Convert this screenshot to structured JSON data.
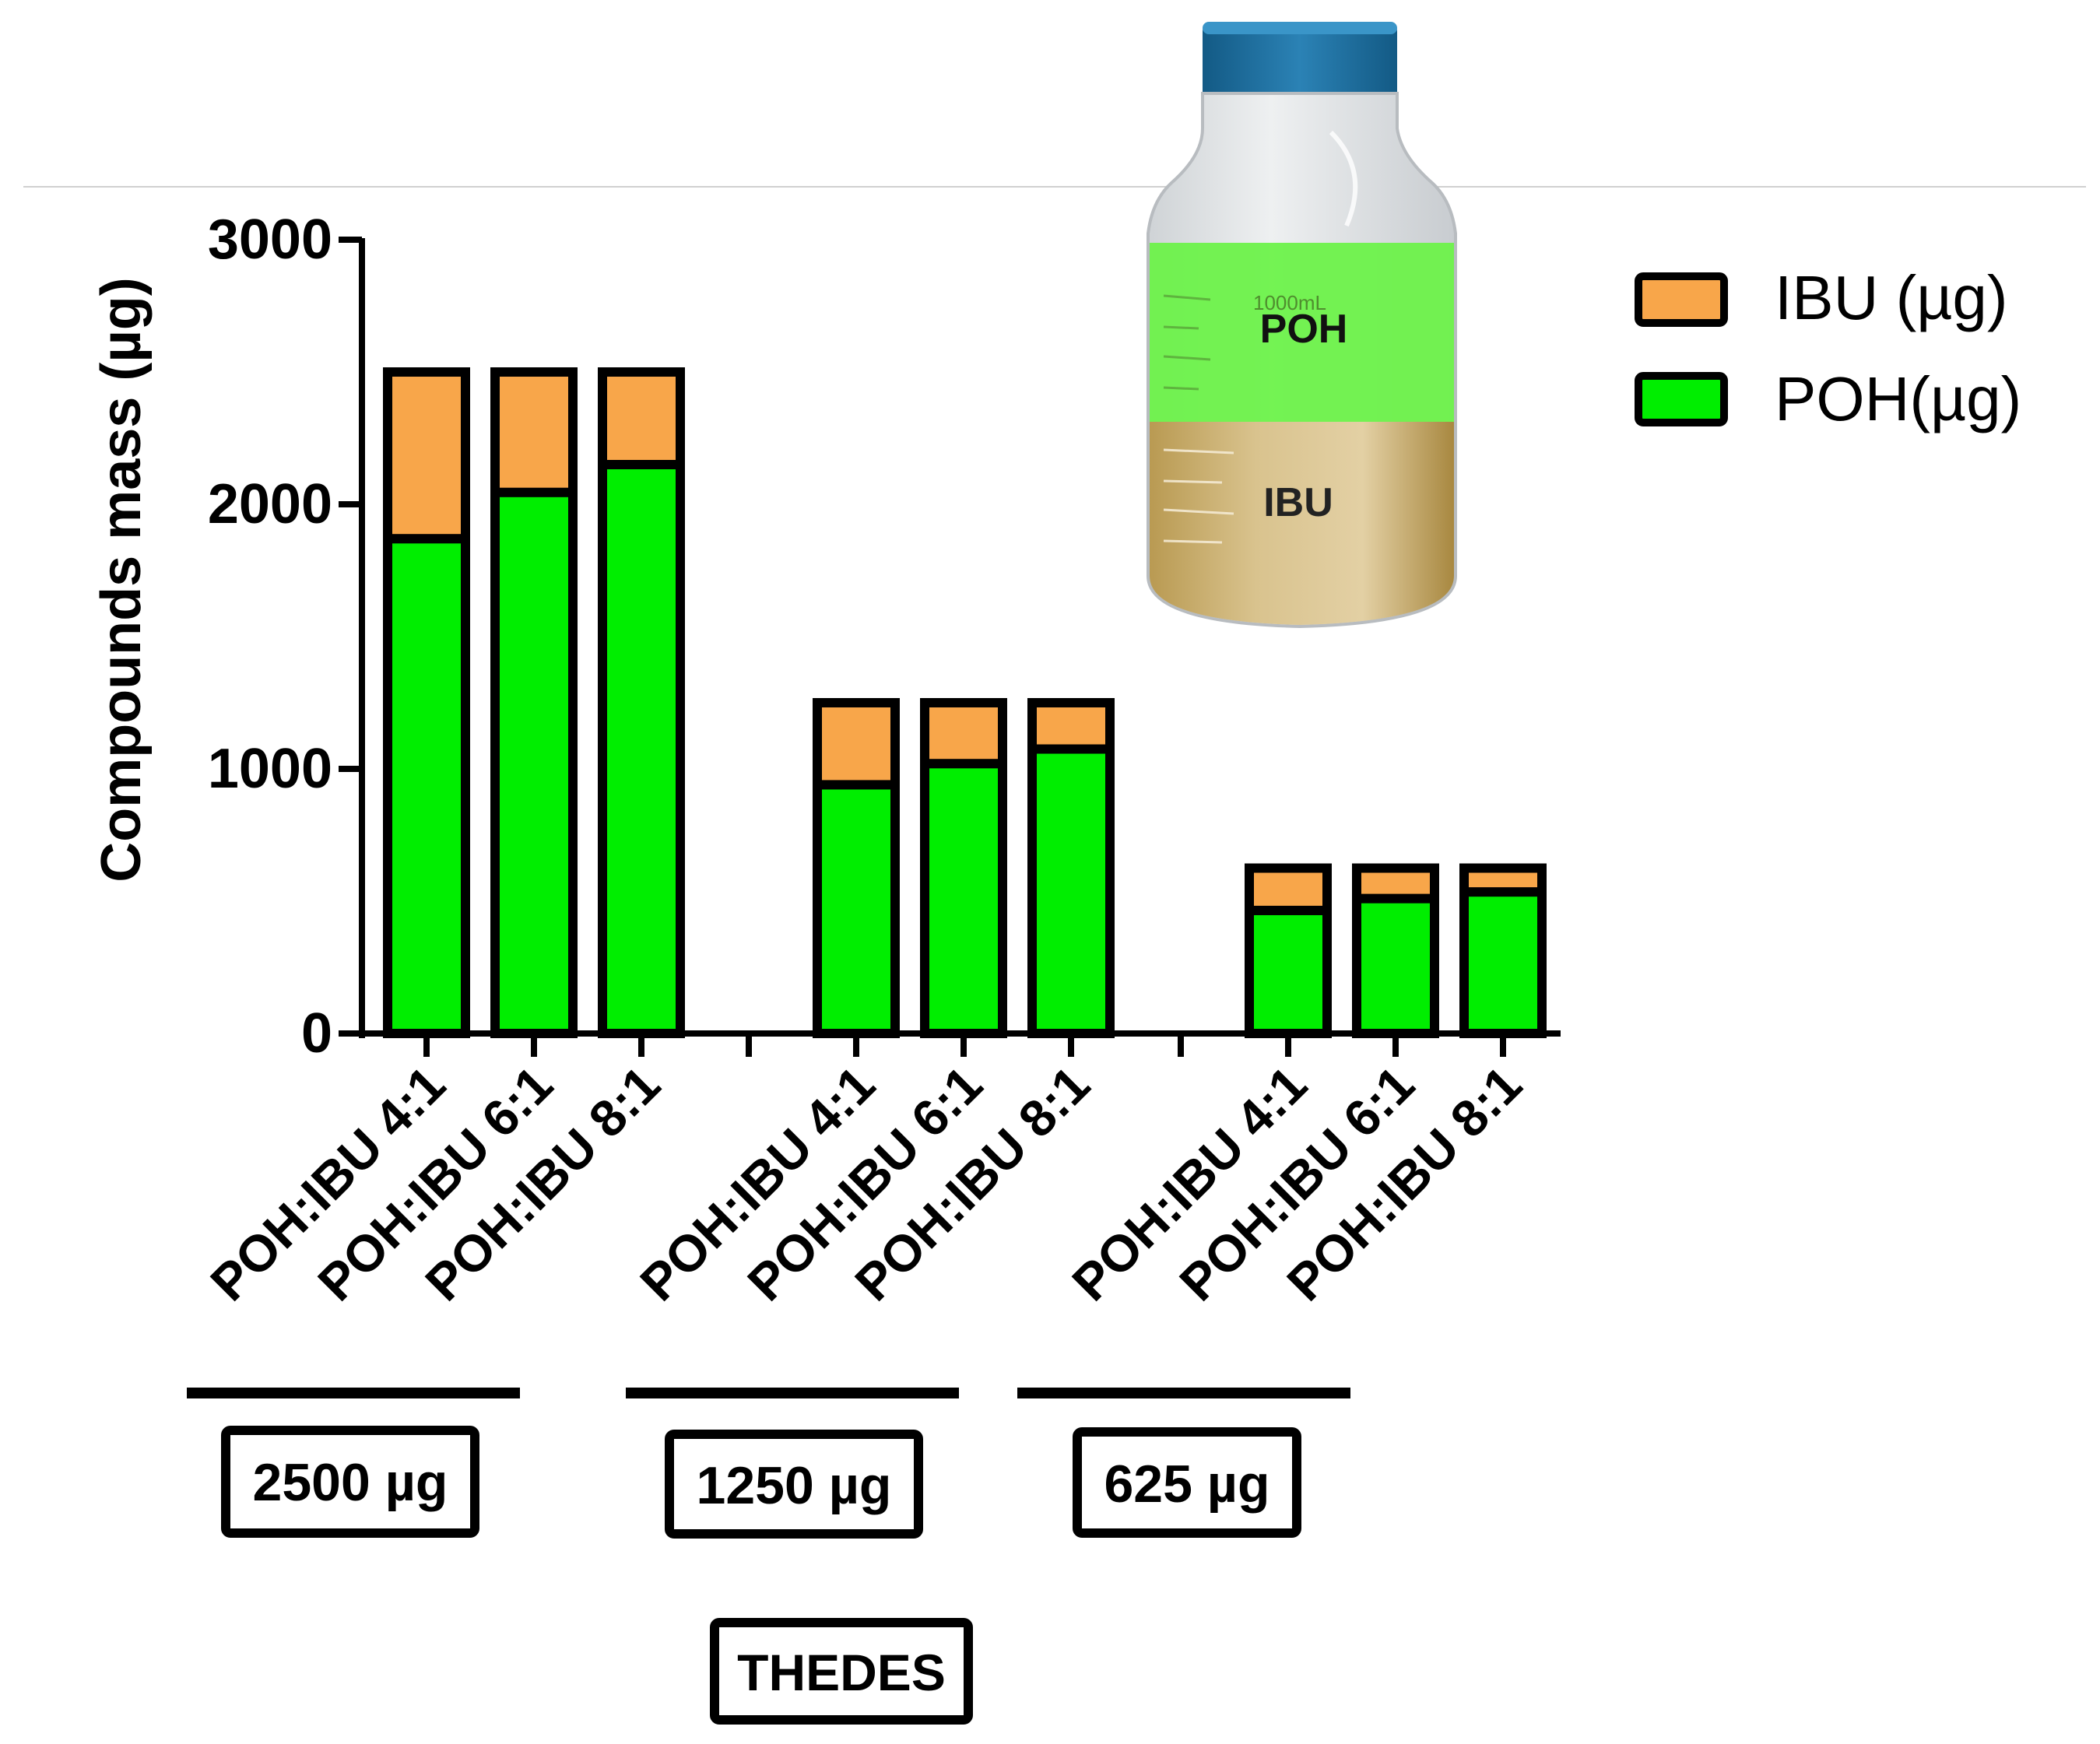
{
  "chart_data": {
    "type": "bar",
    "stacked": true,
    "ylabel": "Compounds mass (µg)",
    "ylim": [
      0,
      3000
    ],
    "yticks": [
      "0",
      "1000",
      "2000",
      "3000"
    ],
    "groups": [
      {
        "label": "2500 µg",
        "categories": [
          "POH:IBU 4:1",
          "POH:IBU 6:1",
          "POH:IBU 8:1"
        ],
        "POH": [
          1870,
          2045,
          2150
        ],
        "IBU": [
          630,
          455,
          350
        ]
      },
      {
        "label": "1250 µg",
        "categories": [
          "POH:IBU 4:1",
          "POH:IBU 6:1",
          "POH:IBU 8:1"
        ],
        "POH": [
          940,
          1020,
          1075
        ],
        "IBU": [
          310,
          230,
          175
        ]
      },
      {
        "label": "625 µg",
        "categories": [
          "POH:IBU 4:1",
          "POH:IBU 6:1",
          "POH:IBU 8:1"
        ],
        "POH": [
          465,
          510,
          535
        ],
        "IBU": [
          160,
          115,
          90
        ]
      }
    ],
    "series": [
      {
        "name": "IBU (µg)",
        "key": "IBU",
        "color": "#f8a64a"
      },
      {
        "name": "POH(µg)",
        "key": "POH",
        "color": "#00ee00"
      }
    ],
    "legend_position": "top-right",
    "footer_label": "THEDES",
    "bottle": {
      "top_label": "POH",
      "bottom_label": "IBU",
      "volume_mark": "1000mL"
    },
    "colors": {
      "axis": "#000000",
      "cap": "#1f6f9f",
      "poh_liquid": "#6df24a",
      "ibu_liquid": "#d7bd82"
    }
  }
}
